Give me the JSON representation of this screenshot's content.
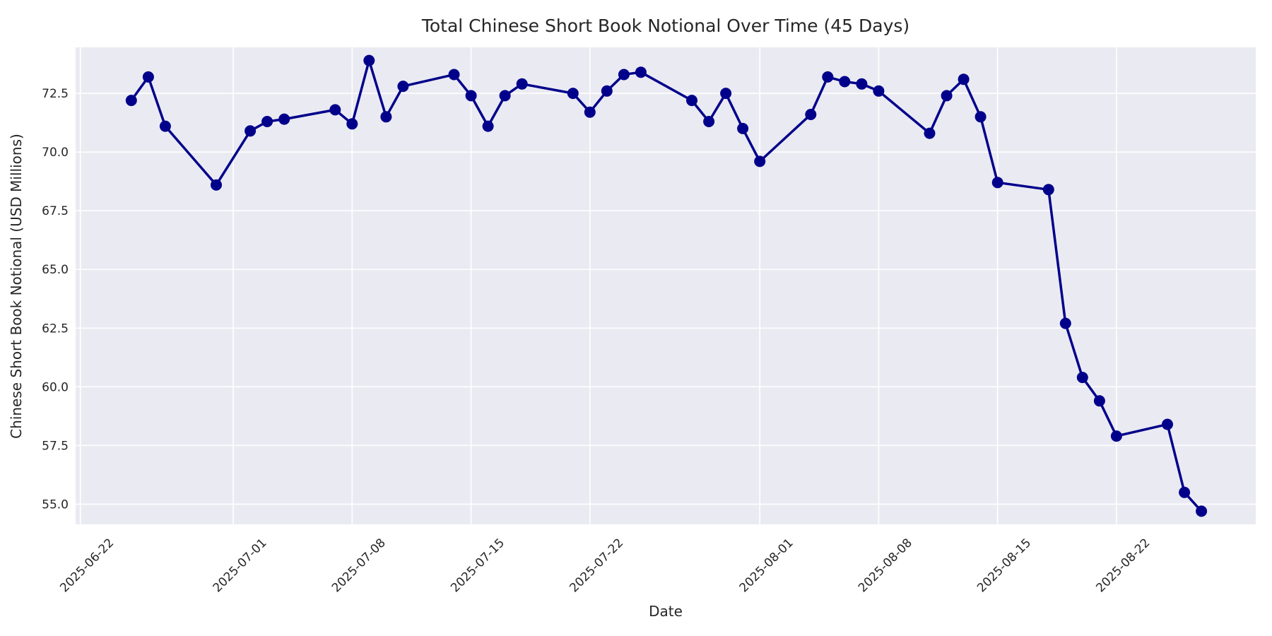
{
  "page": {
    "kind": "matplotlib-seaborn line chart screenshot"
  },
  "colors": {
    "figure_background": "#FFFFFF",
    "plot_background": "#EAEAF2",
    "gridline": "#FFFFFF",
    "line": "#00008B",
    "marker": "#00008B",
    "text": "#262626"
  },
  "chart_data": {
    "type": "line",
    "title": "Total Chinese Short Book Notional Over Time (45 Days)",
    "xlabel": "Date",
    "ylabel": "Chinese Short Book Notional (USD Millions)",
    "legend": null,
    "grid": true,
    "marker_style": "circle",
    "x": [
      "2025-06-25",
      "2025-06-26",
      "2025-06-27",
      "2025-06-30",
      "2025-07-02",
      "2025-07-03",
      "2025-07-04",
      "2025-07-07",
      "2025-07-08",
      "2025-07-09",
      "2025-07-10",
      "2025-07-11",
      "2025-07-14",
      "2025-07-15",
      "2025-07-16",
      "2025-07-17",
      "2025-07-18",
      "2025-07-21",
      "2025-07-22",
      "2025-07-23",
      "2025-07-24",
      "2025-07-25",
      "2025-07-28",
      "2025-07-29",
      "2025-07-30",
      "2025-07-31",
      "2025-08-01",
      "2025-08-04",
      "2025-08-05",
      "2025-08-06",
      "2025-08-07",
      "2025-08-08",
      "2025-08-11",
      "2025-08-12",
      "2025-08-13",
      "2025-08-14",
      "2025-08-15",
      "2025-08-18",
      "2025-08-19",
      "2025-08-20",
      "2025-08-21",
      "2025-08-22",
      "2025-08-25",
      "2025-08-26",
      "2025-08-27"
    ],
    "values": [
      72.2,
      73.2,
      71.1,
      68.6,
      70.9,
      71.3,
      71.4,
      71.8,
      71.2,
      73.9,
      71.5,
      72.8,
      73.3,
      72.4,
      71.1,
      72.4,
      72.9,
      72.5,
      71.7,
      72.6,
      73.3,
      73.4,
      72.2,
      71.3,
      72.5,
      71.0,
      69.6,
      71.6,
      73.2,
      73.0,
      72.9,
      72.6,
      70.8,
      72.4,
      73.1,
      71.5,
      68.7,
      68.4,
      62.7,
      60.4,
      59.4,
      57.9,
      58.4,
      55.5,
      54.7
    ],
    "x_ticks": [
      "2025-06-22",
      "2025-07-01",
      "2025-07-08",
      "2025-07-15",
      "2025-07-22",
      "2025-08-01",
      "2025-08-08",
      "2025-08-15",
      "2025-08-22"
    ],
    "y_ticks": [
      55.0,
      57.5,
      60.0,
      62.5,
      65.0,
      67.5,
      70.0,
      72.5
    ],
    "y_tick_labels": [
      "55.0",
      "57.5",
      "60.0",
      "62.5",
      "65.0",
      "67.5",
      "70.0",
      "72.5"
    ],
    "ylim": [
      54.14,
      74.46
    ],
    "xlim_days_from_first_tick": [
      -0.28,
      69.2
    ],
    "x_origin_date": "2025-06-22",
    "x_tick_rotation_deg": 45,
    "legend_position": "none"
  }
}
